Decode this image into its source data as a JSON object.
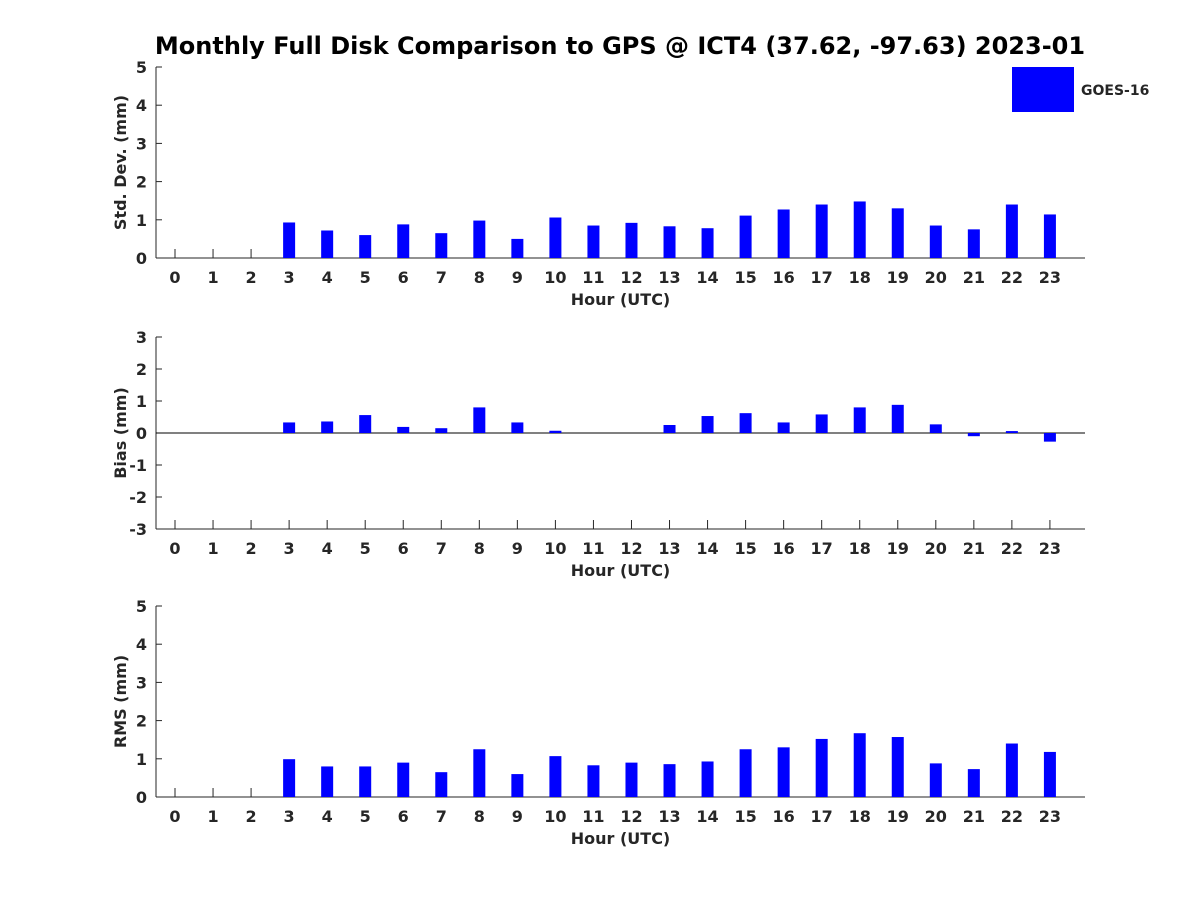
{
  "title": "Monthly Full Disk Comparison to GPS @ ICT4 (37.62, -97.63) 2023-01",
  "legend": {
    "label": "GOES-16",
    "color": "#0000ff",
    "position": "top-right"
  },
  "colors": {
    "bar": "#0000ff",
    "axis": "#262626"
  },
  "chart_data": [
    {
      "type": "bar",
      "ylabel": "Std. Dev. (mm)",
      "xlabel": "Hour (UTC)",
      "ylim": [
        0,
        5
      ],
      "yticks": [
        0,
        1,
        2,
        3,
        4,
        5
      ],
      "categories": [
        "0",
        "1",
        "2",
        "3",
        "4",
        "5",
        "6",
        "7",
        "8",
        "9",
        "10",
        "11",
        "12",
        "13",
        "14",
        "15",
        "16",
        "17",
        "18",
        "19",
        "20",
        "21",
        "22",
        "23"
      ],
      "series": [
        {
          "name": "GOES-16",
          "values": [
            null,
            null,
            null,
            0.93,
            0.72,
            0.6,
            0.88,
            0.65,
            0.98,
            0.5,
            1.06,
            0.85,
            0.92,
            0.83,
            0.78,
            1.11,
            1.27,
            1.4,
            1.48,
            1.3,
            0.85,
            0.75,
            1.4,
            1.14
          ]
        }
      ]
    },
    {
      "type": "bar",
      "ylabel": "Bias (mm)",
      "xlabel": "Hour (UTC)",
      "ylim": [
        -3,
        3
      ],
      "yticks": [
        -3,
        -2,
        -1,
        0,
        1,
        2,
        3
      ],
      "categories": [
        "0",
        "1",
        "2",
        "3",
        "4",
        "5",
        "6",
        "7",
        "8",
        "9",
        "10",
        "11",
        "12",
        "13",
        "14",
        "15",
        "16",
        "17",
        "18",
        "19",
        "20",
        "21",
        "22",
        "23"
      ],
      "series": [
        {
          "name": "GOES-16",
          "values": [
            null,
            null,
            null,
            0.33,
            0.36,
            0.56,
            0.19,
            0.15,
            0.8,
            0.33,
            0.07,
            0.0,
            0.0,
            0.25,
            0.53,
            0.62,
            0.33,
            0.58,
            0.8,
            0.88,
            0.27,
            -0.1,
            0.06,
            -0.27
          ]
        }
      ]
    },
    {
      "type": "bar",
      "ylabel": "RMS (mm)",
      "xlabel": "Hour (UTC)",
      "ylim": [
        0,
        5
      ],
      "yticks": [
        0,
        1,
        2,
        3,
        4,
        5
      ],
      "categories": [
        "0",
        "1",
        "2",
        "3",
        "4",
        "5",
        "6",
        "7",
        "8",
        "9",
        "10",
        "11",
        "12",
        "13",
        "14",
        "15",
        "16",
        "17",
        "18",
        "19",
        "20",
        "21",
        "22",
        "23"
      ],
      "series": [
        {
          "name": "GOES-16",
          "values": [
            null,
            null,
            null,
            0.99,
            0.8,
            0.8,
            0.9,
            0.65,
            1.25,
            0.6,
            1.07,
            0.83,
            0.9,
            0.86,
            0.93,
            1.25,
            1.3,
            1.52,
            1.67,
            1.57,
            0.88,
            0.73,
            1.4,
            1.18
          ]
        }
      ]
    }
  ]
}
